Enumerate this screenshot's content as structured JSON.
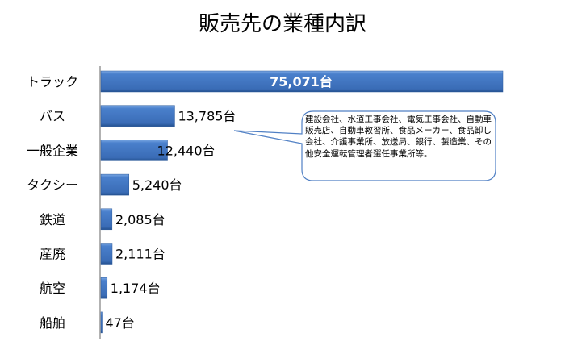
{
  "chart_data": {
    "type": "bar",
    "orientation": "horizontal",
    "title": "販売先の業種内訳",
    "categories": [
      "トラック",
      "バス",
      "一般企業",
      "タクシー",
      "鉄道",
      "産廃",
      "航空",
      "船舶"
    ],
    "values": [
      75071,
      13785,
      12440,
      5240,
      2085,
      2111,
      1174,
      47
    ],
    "data_labels": [
      "75,071台",
      "13,785台",
      "12,440台",
      "5,240台",
      "2,085台",
      "2,111台",
      "1,174台",
      "47台"
    ],
    "xlim": [
      0,
      75071
    ],
    "grid": false,
    "bar_color": "#3f74c0",
    "callout": {
      "text": "建設会社、水道工事会社、電気工事会社、自動車販売店、自動車教習所、食品メーカー、食品卸し会社、介護事業所、放送局、銀行、製造業、その他安全運転管理者選任事業所等。",
      "points_to": "一般企業"
    }
  }
}
